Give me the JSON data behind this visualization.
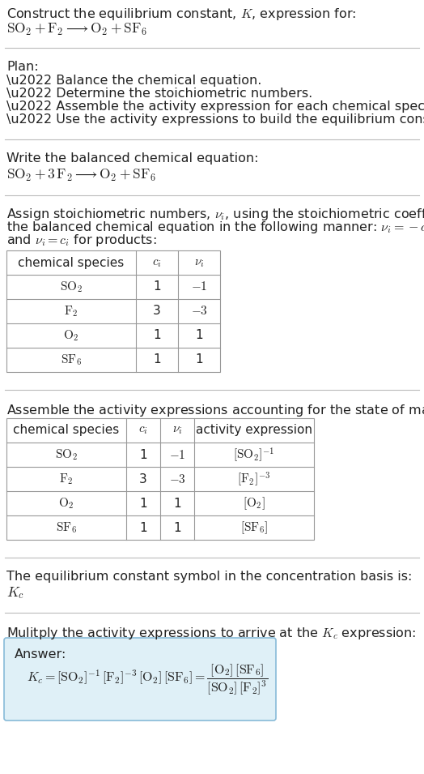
{
  "bg_color": "#ffffff",
  "text_color": "#222222",
  "title_line1": "Construct the equilibrium constant, $K$, expression for:",
  "title_line2": "$\\mathrm{SO_2} + \\mathrm{F_2} \\longrightarrow \\mathrm{O_2} + \\mathrm{SF_6}$",
  "plan_header": "Plan:",
  "plan_items": [
    "\\u2022 Balance the chemical equation.",
    "\\u2022 Determine the stoichiometric numbers.",
    "\\u2022 Assemble the activity expression for each chemical species.",
    "\\u2022 Use the activity expressions to build the equilibrium constant expression."
  ],
  "balanced_header": "Write the balanced chemical equation:",
  "balanced_eq": "$\\mathrm{SO_2} + 3\\,\\mathrm{F_2} \\longrightarrow \\mathrm{O_2} + \\mathrm{SF_6}$",
  "stoich_header_parts": [
    "Assign stoichiometric numbers, $\\nu_i$, using the stoichiometric coefficients, $c_i$, from",
    "the balanced chemical equation in the following manner: $\\nu_i = -c_i$ for reactants",
    "and $\\nu_i = c_i$ for products:"
  ],
  "table1_header": [
    "chemical species",
    "$c_i$",
    "$\\nu_i$"
  ],
  "table1_rows": [
    [
      "$\\mathrm{SO_2}$",
      "1",
      "$-1$"
    ],
    [
      "$\\mathrm{F_2}$",
      "3",
      "$-3$"
    ],
    [
      "$\\mathrm{O_2}$",
      "1",
      "1"
    ],
    [
      "$\\mathrm{SF_6}$",
      "1",
      "1"
    ]
  ],
  "activity_header": "Assemble the activity expressions accounting for the state of matter and $\\nu_i$:",
  "table2_header": [
    "chemical species",
    "$c_i$",
    "$\\nu_i$",
    "activity expression"
  ],
  "table2_rows": [
    [
      "$\\mathrm{SO_2}$",
      "1",
      "$-1$",
      "$[\\mathrm{SO_2}]^{-1}$"
    ],
    [
      "$\\mathrm{F_2}$",
      "3",
      "$-3$",
      "$[\\mathrm{F_2}]^{-3}$"
    ],
    [
      "$\\mathrm{O_2}$",
      "1",
      "1",
      "$[\\mathrm{O_2}]$"
    ],
    [
      "$\\mathrm{SF_6}$",
      "1",
      "1",
      "$[\\mathrm{SF_6}]$"
    ]
  ],
  "kc_line1": "The equilibrium constant symbol in the concentration basis is:",
  "kc_symbol": "$K_c$",
  "multiply_line": "Mulitply the activity expressions to arrive at the $K_c$ expression:",
  "answer_box_color": "#dff0f7",
  "answer_border_color": "#88bbd8",
  "answer_label": "Answer:",
  "fs_body": 11.5,
  "fs_table": 11.0,
  "fs_eq": 12.5
}
